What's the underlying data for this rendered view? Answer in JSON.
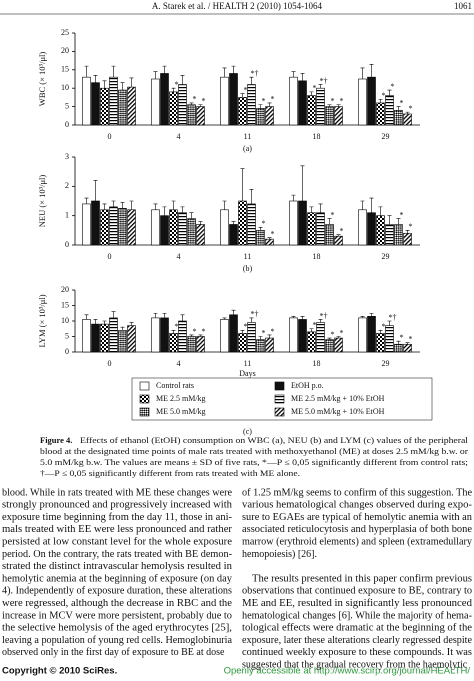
{
  "header": {
    "running_title": "A. Starek et al. / HEALTH 2 (2010) 1054-1064",
    "page": "1061"
  },
  "chart_data": [
    {
      "type": "bar",
      "ylabel": "WBC (× 10³/μl)",
      "subtitle": "(a)",
      "categories": [
        "0",
        "4",
        "11",
        "18",
        "29"
      ],
      "ylim": [
        0,
        25
      ],
      "yticks": [
        0,
        5,
        10,
        15,
        20,
        25
      ],
      "series": [
        {
          "pattern": "white",
          "values": [
            13,
            12.5,
            13,
            13,
            12.5
          ],
          "errors": [
            3,
            2,
            2.5,
            1.5,
            3
          ],
          "marks": [
            null,
            null,
            null,
            null,
            null
          ]
        },
        {
          "pattern": "black",
          "values": [
            11.5,
            14,
            14,
            12,
            13
          ],
          "errors": [
            2,
            2,
            2,
            2,
            3.5
          ],
          "marks": [
            null,
            null,
            null,
            null,
            null
          ]
        },
        {
          "pattern": "checker",
          "values": [
            10,
            9,
            7.5,
            8,
            6
          ],
          "errors": [
            2,
            1,
            1,
            1,
            1
          ],
          "marks": [
            null,
            "*",
            "*",
            "*",
            "*"
          ]
        },
        {
          "pattern": "hlines",
          "values": [
            13,
            11,
            11,
            10,
            8
          ],
          "errors": [
            3,
            2.5,
            2,
            1,
            1.5
          ],
          "marks": [
            null,
            null,
            "*†",
            "*†",
            "*"
          ]
        },
        {
          "pattern": "crosshatch",
          "values": [
            9.5,
            5.5,
            4.5,
            5,
            4
          ],
          "errors": [
            2,
            0.5,
            1,
            0.5,
            1
          ],
          "marks": [
            null,
            "*",
            "*",
            "*",
            "*"
          ]
        },
        {
          "pattern": "diagonal",
          "values": [
            10.3,
            5,
            5,
            5,
            3
          ],
          "errors": [
            2.5,
            0.5,
            1,
            0.5,
            0.5
          ],
          "marks": [
            null,
            "*",
            "*",
            "*",
            "*"
          ]
        }
      ]
    },
    {
      "type": "bar",
      "ylabel": "NEU (× 10³/μl)",
      "subtitle": "(b)",
      "categories": [
        "0",
        "4",
        "11",
        "18",
        "29"
      ],
      "ylim": [
        0,
        3
      ],
      "yticks": [
        0,
        1,
        2,
        3
      ],
      "series": [
        {
          "pattern": "white",
          "values": [
            1.4,
            1.2,
            1.2,
            1.5,
            1.2
          ],
          "errors": [
            0.2,
            0.2,
            0.3,
            0.2,
            0.3
          ],
          "marks": [
            null,
            null,
            null,
            null,
            null
          ]
        },
        {
          "pattern": "black",
          "values": [
            1.5,
            1,
            0.7,
            1.5,
            1.1
          ],
          "errors": [
            0.7,
            0.3,
            0.1,
            1.2,
            0.5
          ],
          "marks": [
            null,
            null,
            null,
            null,
            null
          ]
        },
        {
          "pattern": "checker",
          "values": [
            1.2,
            1.2,
            1.5,
            1.1,
            1
          ],
          "errors": [
            0.2,
            0.3,
            1.1,
            0.2,
            0.3
          ],
          "marks": [
            null,
            null,
            null,
            null,
            null
          ]
        },
        {
          "pattern": "hlines",
          "values": [
            1.3,
            1.1,
            1.4,
            1.1,
            0.7
          ],
          "errors": [
            0.2,
            0.2,
            0.5,
            0.3,
            0.3
          ],
          "marks": [
            null,
            null,
            null,
            null,
            null
          ]
        },
        {
          "pattern": "crosshatch",
          "values": [
            1.25,
            0.9,
            0.5,
            0.7,
            0.7
          ],
          "errors": [
            0.2,
            0.2,
            0.1,
            0.2,
            0.2
          ],
          "marks": [
            null,
            null,
            "*",
            "*",
            "*"
          ]
        },
        {
          "pattern": "diagonal",
          "values": [
            1.2,
            0.7,
            0.2,
            0.3,
            0.4
          ],
          "errors": [
            0.3,
            0.1,
            0.05,
            0.05,
            0.1
          ],
          "marks": [
            null,
            null,
            "*",
            "*",
            "*"
          ]
        }
      ]
    },
    {
      "type": "bar",
      "ylabel": "LYM (× 10³/μl)",
      "subtitle": "(c)",
      "xlabel": "Days",
      "categories": [
        "0",
        "4",
        "11",
        "18",
        "29"
      ],
      "ylim": [
        0,
        20
      ],
      "yticks": [
        0,
        5,
        10,
        15,
        20
      ],
      "series": [
        {
          "name": "Control rats",
          "pattern": "white",
          "values": [
            10.5,
            11,
            10.5,
            11,
            11
          ],
          "errors": [
            1.5,
            1.5,
            0.5,
            0.5,
            0.5
          ],
          "marks": [
            null,
            null,
            null,
            null,
            null
          ]
        },
        {
          "name": "EtOH p.o.",
          "pattern": "black",
          "values": [
            9,
            11,
            12,
            10.5,
            11.5
          ],
          "errors": [
            1.5,
            1.5,
            1.5,
            1,
            1
          ],
          "marks": [
            null,
            null,
            null,
            null,
            null
          ]
        },
        {
          "name": "ME 2.5 mM/kg",
          "pattern": "checker",
          "values": [
            9,
            6,
            6,
            6.5,
            6
          ],
          "errors": [
            1,
            1,
            1,
            1,
            1
          ],
          "marks": [
            null,
            "*",
            "*",
            "*",
            "*"
          ]
        },
        {
          "name": "ME 2.5 mM/kg + 10% EtOH",
          "pattern": "hlines",
          "values": [
            11,
            10,
            9.5,
            9.5,
            8.5
          ],
          "errors": [
            2,
            2,
            1.5,
            1,
            1.5
          ],
          "marks": [
            null,
            null,
            "*†",
            "*†",
            "*†"
          ]
        },
        {
          "name": "ME 5.0 mM/kg",
          "pattern": "crosshatch",
          "values": [
            7,
            5,
            4,
            4,
            2.5
          ],
          "errors": [
            1,
            0.5,
            1,
            0.5,
            1
          ],
          "marks": [
            null,
            "*",
            "*",
            "*",
            "*"
          ]
        },
        {
          "name": "ME 5.0 mM/kg + 10% EtOH",
          "pattern": "diagonal",
          "values": [
            8.5,
            5,
            4.5,
            4.5,
            2.5
          ],
          "errors": [
            1,
            0.5,
            1,
            0.5,
            0.5
          ],
          "marks": [
            null,
            "*",
            "*",
            "*",
            "*"
          ]
        }
      ]
    }
  ],
  "caption": {
    "label": "Figure 4.",
    "lines": [
      "Effects of ethanol (EtOH) consumption on WBC (a), NEU (b) and LYM (c) values of the peripheral",
      "blood at the designated time points of male rats treated with methoxyethanol (ME) at doses 2.5 mM/kg b.w. or",
      "5.0 mM/kg b.w. The values are means ± SD of five rats, *—P ≤ 0,05 significantly different from control rats;",
      "†—P ≤ 0,05 significantly different from rats treated with ME alone."
    ]
  },
  "body": {
    "left": [
      [
        "blood. While in rats treated with ME these changes were",
        "strongly pronounced and progressively increased with",
        "exposure time beginning from the day 11, those in ani-",
        "mals treated with EE were less pronounced and rather",
        "persisted at low constant level for the whole exposure",
        "period. On the contrary, the rats treated with BE demon-",
        "strated the distinct intravascular hemolysis resulted in",
        "hemolytic anemia at the beginning of exposure (on day",
        "4). Independently of exposure duration, these alterations",
        "were regressed, although the decrease in RBC and the",
        "increase in MCV were more persistent, probably due to",
        "the selective hemolysis of the aged erythrocytes [25],",
        "leaving a population of young red cells. Hemoglobinuria",
        "observed only in the first day of exposure to BE at dose"
      ]
    ],
    "right": [
      [
        "of 1.25 mM/kg seems to confirm of this suggestion. The",
        "various hematological changes observed during expo-",
        "sure to EGAEs are typical of hemolytic anemia with an",
        "associated reticulocytosis and hyperplasia of both bone",
        "marrow (erythroid elements) and spleen (extramedullary",
        "hemopoiesis) [26]."
      ],
      [
        "The results presented in this paper confirm previous",
        "observations that continued exposure to BE, contrary to",
        "ME and EE, resulted in significantly less pronounced",
        "hematological changes [6]. While the majority of hema-",
        "tological effects were dramatic at the beginning of the",
        "exposure, later these alterations clearly regressed despite",
        "continued weekly exposure to these compounds. It was",
        "suggested that the gradual recovery from the haemolytic"
      ]
    ]
  },
  "footer": {
    "copyright": "Copyright © 2010 SciRes.",
    "access": "Openly accessible at http://www.scirp.org/journal/HEALTH/"
  }
}
